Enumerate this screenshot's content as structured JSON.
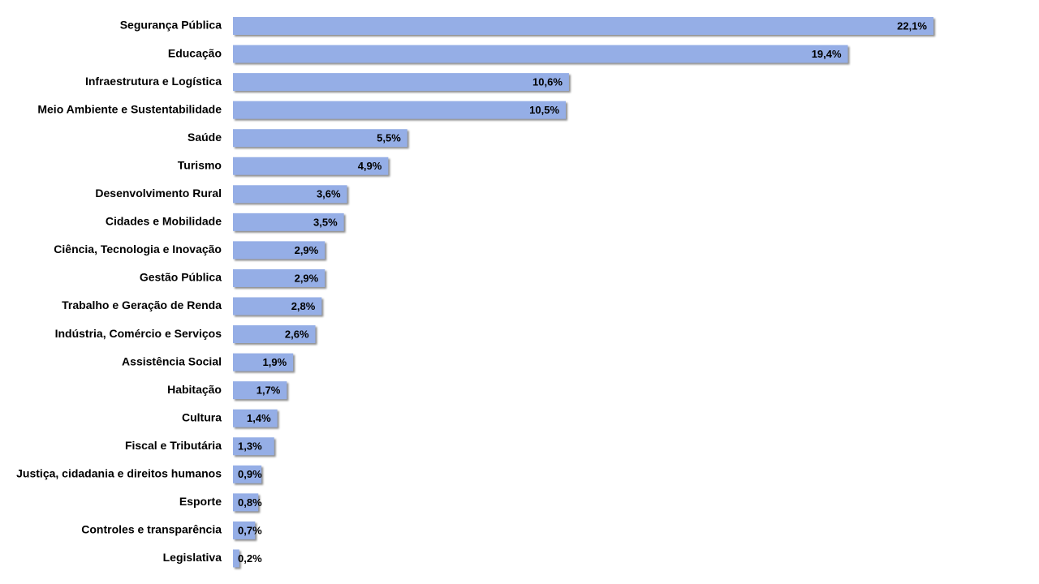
{
  "chart_data": {
    "type": "bar",
    "orientation": "horizontal",
    "categories": [
      "Segurança Pública",
      "Educação",
      "Infraestrutura e Logística",
      "Meio Ambiente e Sustentabilidade",
      "Saúde",
      "Turismo",
      "Desenvolvimento Rural",
      "Cidades e Mobilidade",
      "Ciência, Tecnologia e Inovação",
      "Gestão Pública",
      "Trabalho e Geração de Renda",
      "Indústria, Comércio e Serviços",
      "Assistência Social",
      "Habitação",
      "Cultura",
      "Fiscal e Tributária",
      "Justiça, cidadania e direitos humanos",
      "Esporte",
      "Controles e transparência",
      "Legislativa"
    ],
    "values": [
      22.1,
      19.4,
      10.6,
      10.5,
      5.5,
      4.9,
      3.6,
      3.5,
      2.9,
      2.9,
      2.8,
      2.6,
      1.9,
      1.7,
      1.4,
      1.3,
      0.9,
      0.8,
      0.7,
      0.2
    ],
    "value_labels": [
      "22,1%",
      "19,4%",
      "10,6%",
      "10,5%",
      "5,5%",
      "4,9%",
      "3,6%",
      "3,5%",
      "2,9%",
      "2,9%",
      "2,8%",
      "2,6%",
      "1,9%",
      "1,7%",
      "1,4%",
      "1,3%",
      "0,9%",
      "0,8%",
      "0,7%",
      "0,2%"
    ],
    "color": "#95aee6"
  }
}
